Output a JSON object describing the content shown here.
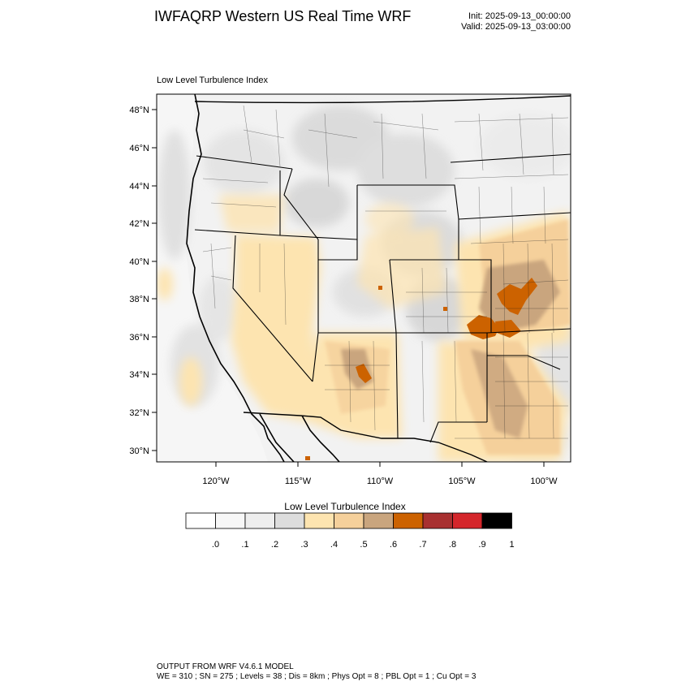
{
  "header": {
    "title": "IWFAQRP Western US Real Time WRF",
    "init": "Init: 2025-09-13_00:00:00",
    "valid": "Valid: 2025-09-13_03:00:00"
  },
  "map": {
    "subtitle": "Low Level Turbulence Index",
    "lat_labels": [
      "48°N",
      "46°N",
      "44°N",
      "42°N",
      "40°N",
      "38°N",
      "36°N",
      "34°N",
      "32°N",
      "30°N"
    ],
    "lon_labels": [
      "120°W",
      "115°W",
      "110°W",
      "105°W",
      "100°W"
    ]
  },
  "colorbar": {
    "title": "Low Level Turbulence Index",
    "tick_labels": [
      ".0",
      ".1",
      ".2",
      ".3",
      ".4",
      ".5",
      ".6",
      ".7",
      ".8",
      ".9",
      "1"
    ],
    "colors": [
      "#ffffff",
      "#f7f7f7",
      "#eeeeee",
      "#dddddd",
      "#fde4b0",
      "#f5d09b",
      "#c9a57e",
      "#cc6200",
      "#a83030",
      "#d4262b",
      "#000000"
    ]
  },
  "footer": {
    "line1": "OUTPUT FROM WRF V4.6.1 MODEL",
    "line2": "WE = 310 ; SN = 275 ; Levels = 38 ; Dis = 8km ; Phys Opt = 8 ; PBL Opt = 1 ; Cu Opt = 3"
  }
}
